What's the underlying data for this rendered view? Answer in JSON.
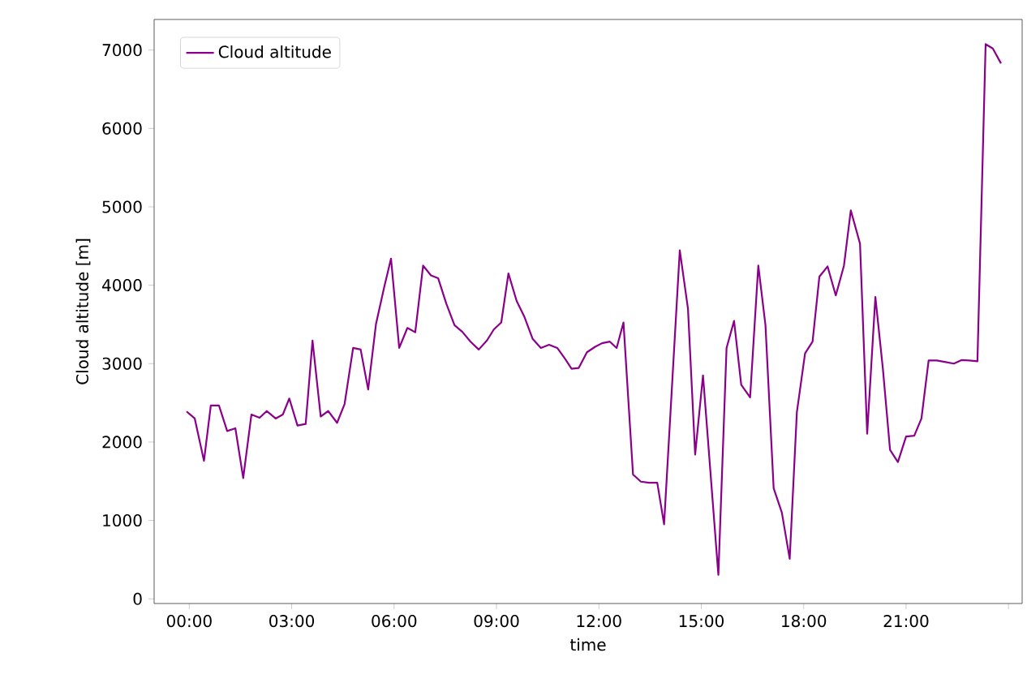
{
  "chart_data": {
    "type": "line",
    "xlabel": "time",
    "ylabel": "Cloud altitude [m]",
    "xlim": [
      -1.03,
      24.4
    ],
    "ylim": [
      -60,
      7390
    ],
    "xticks": [
      {
        "value": 0,
        "label": "00:00"
      },
      {
        "value": 3,
        "label": "03:00"
      },
      {
        "value": 6,
        "label": "06:00"
      },
      {
        "value": 9,
        "label": "09:00"
      },
      {
        "value": 12,
        "label": "12:00"
      },
      {
        "value": 15,
        "label": "15:00"
      },
      {
        "value": 18,
        "label": "18:00"
      },
      {
        "value": 21,
        "label": "21:00"
      },
      {
        "value": 24,
        "label": null
      }
    ],
    "yticks": [
      0,
      1000,
      2000,
      3000,
      4000,
      5000,
      6000,
      7000
    ],
    "legend": "top left",
    "series": [
      {
        "name": "Cloud altitude",
        "color": "#8b008b",
        "x": [
          -0.08,
          0.16,
          0.43,
          0.63,
          0.87,
          1.11,
          1.35,
          1.58,
          1.82,
          2.06,
          2.27,
          2.53,
          2.74,
          2.93,
          3.17,
          3.41,
          3.61,
          3.85,
          4.07,
          4.33,
          4.55,
          4.8,
          5.02,
          5.24,
          5.47,
          5.71,
          5.91,
          6.15,
          6.39,
          6.62,
          6.85,
          7.08,
          7.29,
          7.53,
          7.77,
          8.0,
          8.24,
          8.48,
          8.72,
          8.92,
          9.14,
          9.35,
          9.59,
          9.82,
          10.06,
          10.3,
          10.54,
          10.78,
          11.01,
          11.2,
          11.41,
          11.65,
          11.89,
          12.09,
          12.32,
          12.52,
          12.72,
          13.0,
          13.23,
          13.47,
          13.71,
          13.91,
          14.37,
          14.61,
          14.82,
          15.05,
          15.5,
          15.74,
          15.96,
          16.17,
          16.43,
          16.67,
          16.88,
          17.12,
          17.36,
          17.59,
          17.8,
          18.04,
          18.26,
          18.46,
          18.7,
          18.94,
          19.18,
          19.38,
          19.65,
          19.86,
          20.1,
          20.32,
          20.53,
          20.76,
          21.0,
          21.24,
          21.45,
          21.66,
          21.9,
          22.16,
          22.4,
          22.62,
          22.85,
          23.09,
          23.33,
          23.54,
          23.78
        ],
        "values": [
          2390,
          2300,
          1760,
          2465,
          2465,
          2140,
          2175,
          1540,
          2350,
          2310,
          2395,
          2300,
          2350,
          2555,
          2210,
          2230,
          3295,
          2325,
          2395,
          2245,
          2485,
          3200,
          3180,
          2670,
          3505,
          3975,
          4340,
          3200,
          3455,
          3400,
          4250,
          4125,
          4090,
          3765,
          3490,
          3405,
          3280,
          3180,
          3295,
          3435,
          3525,
          4150,
          3800,
          3595,
          3315,
          3200,
          3240,
          3200,
          3060,
          2935,
          2945,
          3145,
          3215,
          3260,
          3280,
          3200,
          3525,
          1585,
          1495,
          1480,
          1480,
          950,
          4445,
          3700,
          1840,
          2850,
          305,
          3200,
          3545,
          2730,
          2570,
          4250,
          3490,
          1410,
          1100,
          510,
          2380,
          3130,
          3280,
          4110,
          4240,
          3870,
          4250,
          4955,
          4530,
          2105,
          3850,
          2935,
          1900,
          1745,
          2070,
          2080,
          2300,
          3040,
          3040,
          3020,
          3000,
          3045,
          3040,
          3030,
          7075,
          7020,
          6830
        ]
      }
    ]
  }
}
